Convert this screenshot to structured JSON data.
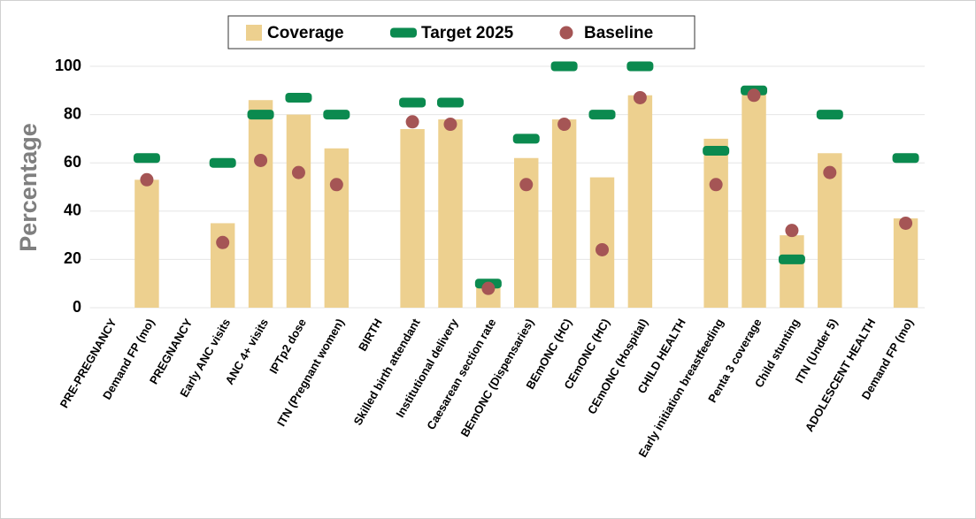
{
  "chart_data": {
    "type": "bar",
    "y_label": "Percentage",
    "categories": [
      "PRE-PREGNANCY",
      "Demand FP (mo)",
      "PREGNANCY",
      "Early ANC visits",
      "ANC 4+ visits",
      "IPTp2 dose",
      "ITN (Pregnant women)",
      "BIRTH",
      "Skilled birth attendant",
      "Institutional delivery",
      "Caesarean section rate",
      "BEmONC (Dispensaries)",
      "BEmONC (HC)",
      "CEmONC (HC)",
      "CEmONC (Hospital)",
      "CHILD HEALTH",
      "Early initiation breastfeeding",
      "Penta 3 coverage",
      "Child stunting",
      "ITN (Under 5)",
      "ADOLESCENT HEALTH",
      "Demand FP (mo)"
    ],
    "series": [
      {
        "name": "Coverage",
        "color": "#edd08f",
        "mark": "bar",
        "values": [
          null,
          53,
          null,
          35,
          86,
          80,
          66,
          null,
          74,
          78,
          9,
          62,
          78,
          54,
          88,
          null,
          70,
          90,
          30,
          64,
          null,
          37
        ]
      },
      {
        "name": "Target 2025",
        "color": "#0b8a4f",
        "mark": "dash",
        "values": [
          null,
          62,
          null,
          60,
          80,
          87,
          80,
          null,
          85,
          85,
          10,
          70,
          100,
          80,
          100,
          null,
          65,
          90,
          20,
          80,
          null,
          62
        ]
      },
      {
        "name": "Baseline",
        "color": "#a55555",
        "mark": "dot",
        "values": [
          null,
          53,
          null,
          27,
          61,
          56,
          51,
          null,
          77,
          76,
          8,
          51,
          76,
          24,
          87,
          null,
          51,
          88,
          32,
          56,
          null,
          35
        ]
      }
    ],
    "ylim": [
      0,
      100
    ],
    "yticks": [
      0,
      20,
      40,
      60,
      80,
      100
    ],
    "grid": true,
    "legend": "top"
  }
}
